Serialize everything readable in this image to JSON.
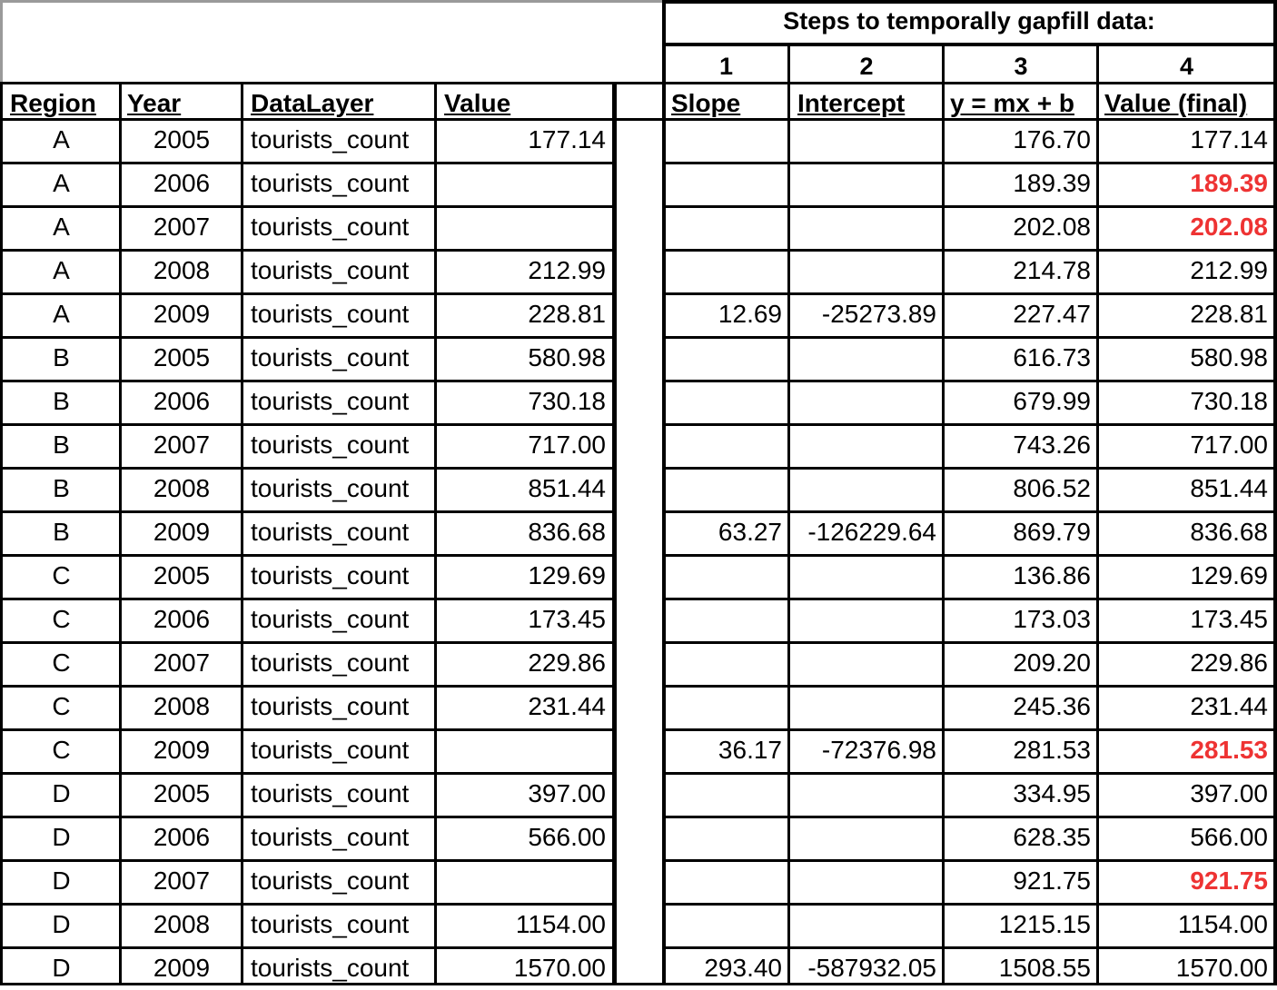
{
  "steps_title": "Steps to temporally gapfill data:",
  "step_numbers": [
    "1",
    "2",
    "3",
    "4"
  ],
  "left_headers": {
    "region": "Region",
    "year": "Year",
    "datalayer": "DataLayer",
    "value": "Value"
  },
  "right_headers": {
    "slope": "Slope",
    "intercept": "Intercept",
    "formula": "y = mx + b",
    "final": "Value (final)"
  },
  "colors": {
    "highlight": "#ee3333"
  },
  "rows": [
    {
      "region": "A",
      "year": "2005",
      "layer": "tourists_count",
      "value": "177.14",
      "slope": "",
      "intercept": "",
      "y": "176.70",
      "final": "177.14",
      "fill": false
    },
    {
      "region": "A",
      "year": "2006",
      "layer": "tourists_count",
      "value": "",
      "slope": "",
      "intercept": "",
      "y": "189.39",
      "final": "189.39",
      "fill": true
    },
    {
      "region": "A",
      "year": "2007",
      "layer": "tourists_count",
      "value": "",
      "slope": "",
      "intercept": "",
      "y": "202.08",
      "final": "202.08",
      "fill": true
    },
    {
      "region": "A",
      "year": "2008",
      "layer": "tourists_count",
      "value": "212.99",
      "slope": "",
      "intercept": "",
      "y": "214.78",
      "final": "212.99",
      "fill": false
    },
    {
      "region": "A",
      "year": "2009",
      "layer": "tourists_count",
      "value": "228.81",
      "slope": "12.69",
      "intercept": "-25273.89",
      "y": "227.47",
      "final": "228.81",
      "fill": false
    },
    {
      "region": "B",
      "year": "2005",
      "layer": "tourists_count",
      "value": "580.98",
      "slope": "",
      "intercept": "",
      "y": "616.73",
      "final": "580.98",
      "fill": false
    },
    {
      "region": "B",
      "year": "2006",
      "layer": "tourists_count",
      "value": "730.18",
      "slope": "",
      "intercept": "",
      "y": "679.99",
      "final": "730.18",
      "fill": false
    },
    {
      "region": "B",
      "year": "2007",
      "layer": "tourists_count",
      "value": "717.00",
      "slope": "",
      "intercept": "",
      "y": "743.26",
      "final": "717.00",
      "fill": false
    },
    {
      "region": "B",
      "year": "2008",
      "layer": "tourists_count",
      "value": "851.44",
      "slope": "",
      "intercept": "",
      "y": "806.52",
      "final": "851.44",
      "fill": false
    },
    {
      "region": "B",
      "year": "2009",
      "layer": "tourists_count",
      "value": "836.68",
      "slope": "63.27",
      "intercept": "-126229.64",
      "y": "869.79",
      "final": "836.68",
      "fill": false
    },
    {
      "region": "C",
      "year": "2005",
      "layer": "tourists_count",
      "value": "129.69",
      "slope": "",
      "intercept": "",
      "y": "136.86",
      "final": "129.69",
      "fill": false
    },
    {
      "region": "C",
      "year": "2006",
      "layer": "tourists_count",
      "value": "173.45",
      "slope": "",
      "intercept": "",
      "y": "173.03",
      "final": "173.45",
      "fill": false
    },
    {
      "region": "C",
      "year": "2007",
      "layer": "tourists_count",
      "value": "229.86",
      "slope": "",
      "intercept": "",
      "y": "209.20",
      "final": "229.86",
      "fill": false
    },
    {
      "region": "C",
      "year": "2008",
      "layer": "tourists_count",
      "value": "231.44",
      "slope": "",
      "intercept": "",
      "y": "245.36",
      "final": "231.44",
      "fill": false
    },
    {
      "region": "C",
      "year": "2009",
      "layer": "tourists_count",
      "value": "",
      "slope": "36.17",
      "intercept": "-72376.98",
      "y": "281.53",
      "final": "281.53",
      "fill": true
    },
    {
      "region": "D",
      "year": "2005",
      "layer": "tourists_count",
      "value": "397.00",
      "slope": "",
      "intercept": "",
      "y": "334.95",
      "final": "397.00",
      "fill": false
    },
    {
      "region": "D",
      "year": "2006",
      "layer": "tourists_count",
      "value": "566.00",
      "slope": "",
      "intercept": "",
      "y": "628.35",
      "final": "566.00",
      "fill": false
    },
    {
      "region": "D",
      "year": "2007",
      "layer": "tourists_count",
      "value": "",
      "slope": "",
      "intercept": "",
      "y": "921.75",
      "final": "921.75",
      "fill": true
    },
    {
      "region": "D",
      "year": "2008",
      "layer": "tourists_count",
      "value": "1154.00",
      "slope": "",
      "intercept": "",
      "y": "1215.15",
      "final": "1154.00",
      "fill": false
    },
    {
      "region": "D",
      "year": "2009",
      "layer": "tourists_count",
      "value": "1570.00",
      "slope": "293.40",
      "intercept": "-587932.05",
      "y": "1508.55",
      "final": "1570.00",
      "fill": false
    }
  ]
}
